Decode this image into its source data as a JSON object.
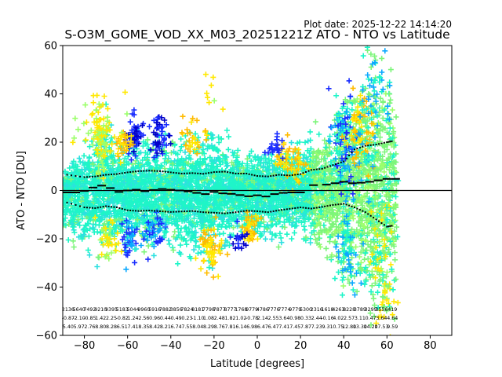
{
  "chart_data": {
    "type": "scatter",
    "plot_date": "Plot date: 2025-12-22 14:14:20",
    "title": "S-O3M_GOME_VOD_XX_M03_20251221Z ATO - NTO vs Latitude",
    "xlabel": "Latitude [degrees]",
    "ylabel": "ATO - NTO [DU]",
    "xlim": [
      -90,
      90
    ],
    "ylim": [
      -60,
      60
    ],
    "xticks": [
      -80,
      -60,
      -40,
      -20,
      0,
      20,
      40,
      60,
      80
    ],
    "yticks": [
      -60,
      -40,
      -20,
      0,
      20,
      40,
      60
    ],
    "grid": false,
    "zero_line": 0,
    "bins_center": [
      -87.5,
      -82.5,
      -77.5,
      -72.5,
      -67.5,
      -62.5,
      -57.5,
      -52.5,
      -47.5,
      -42.5,
      -37.5,
      -32.5,
      -27.5,
      -22.5,
      -17.5,
      -12.5,
      -7.5,
      -2.5,
      2.5,
      7.5,
      12.5,
      17.5,
      22.5,
      27.5,
      32.5,
      37.5,
      42.5,
      47.5,
      52.5,
      57.5,
      62.5
    ],
    "bin_counts": [
      "2136",
      "5640",
      "7492",
      "9210",
      "9395",
      "5183",
      "5044",
      "9960",
      "5916",
      "7882",
      "3856",
      "7824",
      "8181",
      "7798",
      "7877",
      "8777",
      "1768",
      "9779",
      "4786",
      "7776",
      "7774",
      "9779",
      "5300",
      "2316",
      "1618",
      "4263",
      "8228",
      "3789",
      "3299",
      "3556",
      "419"
    ],
    "bin_means": [
      "-0.87",
      "-2.10",
      "-0.85",
      "1.42",
      "2.25",
      "-0.82",
      "1.24",
      "2.56",
      "0.96",
      "0.44",
      "0.49",
      "0.23",
      "-1.10",
      "1.08",
      "2.48",
      "1.82",
      "1.02",
      "-0.78",
      "2.14",
      "2.55",
      "3.64",
      "0.98",
      "0.33",
      "2.44",
      "-0.16",
      "4.02",
      "2.57",
      "3.11",
      "0.47",
      "3.64",
      "4.64"
    ],
    "bin_stds": [
      "5.40",
      "5.97",
      "2.76",
      "8.80",
      "8.28",
      "6.51",
      "7.41",
      "8.35",
      "8.42",
      "8.21",
      "6.74",
      "7.55",
      "8.04",
      "8.29",
      "8.76",
      "7.81",
      "6.14",
      "6.98",
      "6.47",
      "6.47",
      "7.41",
      "7.45",
      "7.87",
      "7.23",
      "9.31",
      "0.75",
      "12.80",
      "13.30",
      "14.20",
      "17.53",
      "9.59"
    ],
    "running_mean": [
      [
        -88,
        -0.8
      ],
      [
        -84,
        -0.8
      ],
      [
        -80,
        -0.2
      ],
      [
        -76,
        1.2
      ],
      [
        -72,
        2.0
      ],
      [
        -68,
        1.0
      ],
      [
        -64,
        -0.6
      ],
      [
        -60,
        0.0
      ],
      [
        -56,
        0.3
      ],
      [
        -52,
        -0.3
      ],
      [
        -48,
        0.2
      ],
      [
        -44,
        0.6
      ],
      [
        -40,
        0.3
      ],
      [
        -36,
        0.0
      ],
      [
        -32,
        -0.4
      ],
      [
        -28,
        -1.0
      ],
      [
        -24,
        -1.5
      ],
      [
        -20,
        -0.6
      ],
      [
        -16,
        -1.2
      ],
      [
        -12,
        -1.4
      ],
      [
        -8,
        -1.9
      ],
      [
        -4,
        -2.4
      ],
      [
        0,
        -2.0
      ],
      [
        4,
        -2.5
      ],
      [
        8,
        -1.5
      ],
      [
        12,
        -1.0
      ],
      [
        16,
        -0.8
      ],
      [
        20,
        -0.8
      ],
      [
        26,
        2.2
      ],
      [
        32,
        2.4
      ],
      [
        36,
        3.0
      ],
      [
        40,
        3.6
      ],
      [
        44,
        3.0
      ],
      [
        48,
        3.2
      ],
      [
        52,
        3.6
      ],
      [
        56,
        4.2
      ],
      [
        60,
        4.8
      ],
      [
        64,
        4.8
      ]
    ],
    "upper_band": [
      [
        -88,
        6.5
      ],
      [
        -80,
        5.5
      ],
      [
        -75,
        5.8
      ],
      [
        -70,
        6.5
      ],
      [
        -65,
        6.8
      ],
      [
        -60,
        7.5
      ],
      [
        -55,
        8.0
      ],
      [
        -50,
        8.2
      ],
      [
        -45,
        8.0
      ],
      [
        -40,
        7.5
      ],
      [
        -35,
        7.0
      ],
      [
        -30,
        7.2
      ],
      [
        -25,
        6.9
      ],
      [
        -20,
        7.6
      ],
      [
        -15,
        7.8
      ],
      [
        -10,
        7.0
      ],
      [
        -5,
        7.0
      ],
      [
        0,
        6.0
      ],
      [
        5,
        5.8
      ],
      [
        10,
        6.5
      ],
      [
        15,
        6.2
      ],
      [
        20,
        6.8
      ],
      [
        25,
        8.5
      ],
      [
        30,
        9.0
      ],
      [
        35,
        10.5
      ],
      [
        40,
        12.0
      ],
      [
        45,
        17.0
      ],
      [
        50,
        18.5
      ],
      [
        55,
        19.0
      ],
      [
        60,
        20.0
      ],
      [
        63,
        20.5
      ]
    ],
    "lower_band": [
      [
        -88,
        -5.0
      ],
      [
        -80,
        -7.0
      ],
      [
        -75,
        -7.3
      ],
      [
        -70,
        -6.5
      ],
      [
        -65,
        -7.0
      ],
      [
        -60,
        -8.2
      ],
      [
        -55,
        -8.5
      ],
      [
        -50,
        -8.3
      ],
      [
        -45,
        -8.6
      ],
      [
        -40,
        -8.9
      ],
      [
        -35,
        -8.7
      ],
      [
        -30,
        -8.5
      ],
      [
        -25,
        -9.0
      ],
      [
        -20,
        -9.2
      ],
      [
        -15,
        -9.5
      ],
      [
        -10,
        -9.0
      ],
      [
        -5,
        -8.4
      ],
      [
        0,
        -8.6
      ],
      [
        5,
        -9.0
      ],
      [
        10,
        -8.2
      ],
      [
        15,
        -7.6
      ],
      [
        20,
        -7.0
      ],
      [
        25,
        -7.5
      ],
      [
        30,
        -6.8
      ],
      [
        35,
        -6.0
      ],
      [
        40,
        -5.5
      ],
      [
        45,
        -7.0
      ],
      [
        50,
        -9.0
      ],
      [
        55,
        -12.0
      ],
      [
        60,
        -15.0
      ],
      [
        63,
        -14.5
      ]
    ],
    "envelope": [
      [
        -90,
        8,
        -16
      ],
      [
        -85,
        14,
        -24
      ],
      [
        -80,
        18,
        -26
      ],
      [
        -75,
        20,
        -28
      ],
      [
        -72,
        30,
        -30
      ],
      [
        -70,
        36,
        -32
      ],
      [
        -68,
        28,
        -26
      ],
      [
        -65,
        20,
        -26
      ],
      [
        -60,
        22,
        -26
      ],
      [
        -55,
        24,
        -28
      ],
      [
        -50,
        24,
        -26
      ],
      [
        -45,
        22,
        -26
      ],
      [
        -40,
        24,
        -28
      ],
      [
        -35,
        22,
        -30
      ],
      [
        -30,
        28,
        -28
      ],
      [
        -25,
        24,
        -30
      ],
      [
        -20,
        28,
        -30
      ],
      [
        -15,
        22,
        -24
      ],
      [
        -10,
        18,
        -22
      ],
      [
        -5,
        17,
        -20
      ],
      [
        0,
        16,
        -22
      ],
      [
        5,
        18,
        -24
      ],
      [
        10,
        16,
        -22
      ],
      [
        15,
        20,
        -22
      ],
      [
        20,
        22,
        -20
      ],
      [
        25,
        24,
        -26
      ],
      [
        30,
        26,
        -30
      ],
      [
        35,
        30,
        -34
      ],
      [
        40,
        40,
        -40
      ],
      [
        45,
        46,
        -48
      ],
      [
        50,
        54,
        -52
      ],
      [
        55,
        56,
        -58
      ],
      [
        60,
        56,
        -60
      ],
      [
        63,
        48,
        -56
      ],
      [
        65,
        20,
        -20
      ]
    ],
    "colors": {
      "cyan": "#1ef5c8",
      "teal": "#2de0e0",
      "green": "#7df57a",
      "lightgreen": "#9bff6a",
      "yellow": "#ffe800",
      "orange": "#ffbb00",
      "blue": "#1a2dff",
      "deepblue": "#0000c8",
      "skyblue": "#0aa8ff"
    }
  }
}
